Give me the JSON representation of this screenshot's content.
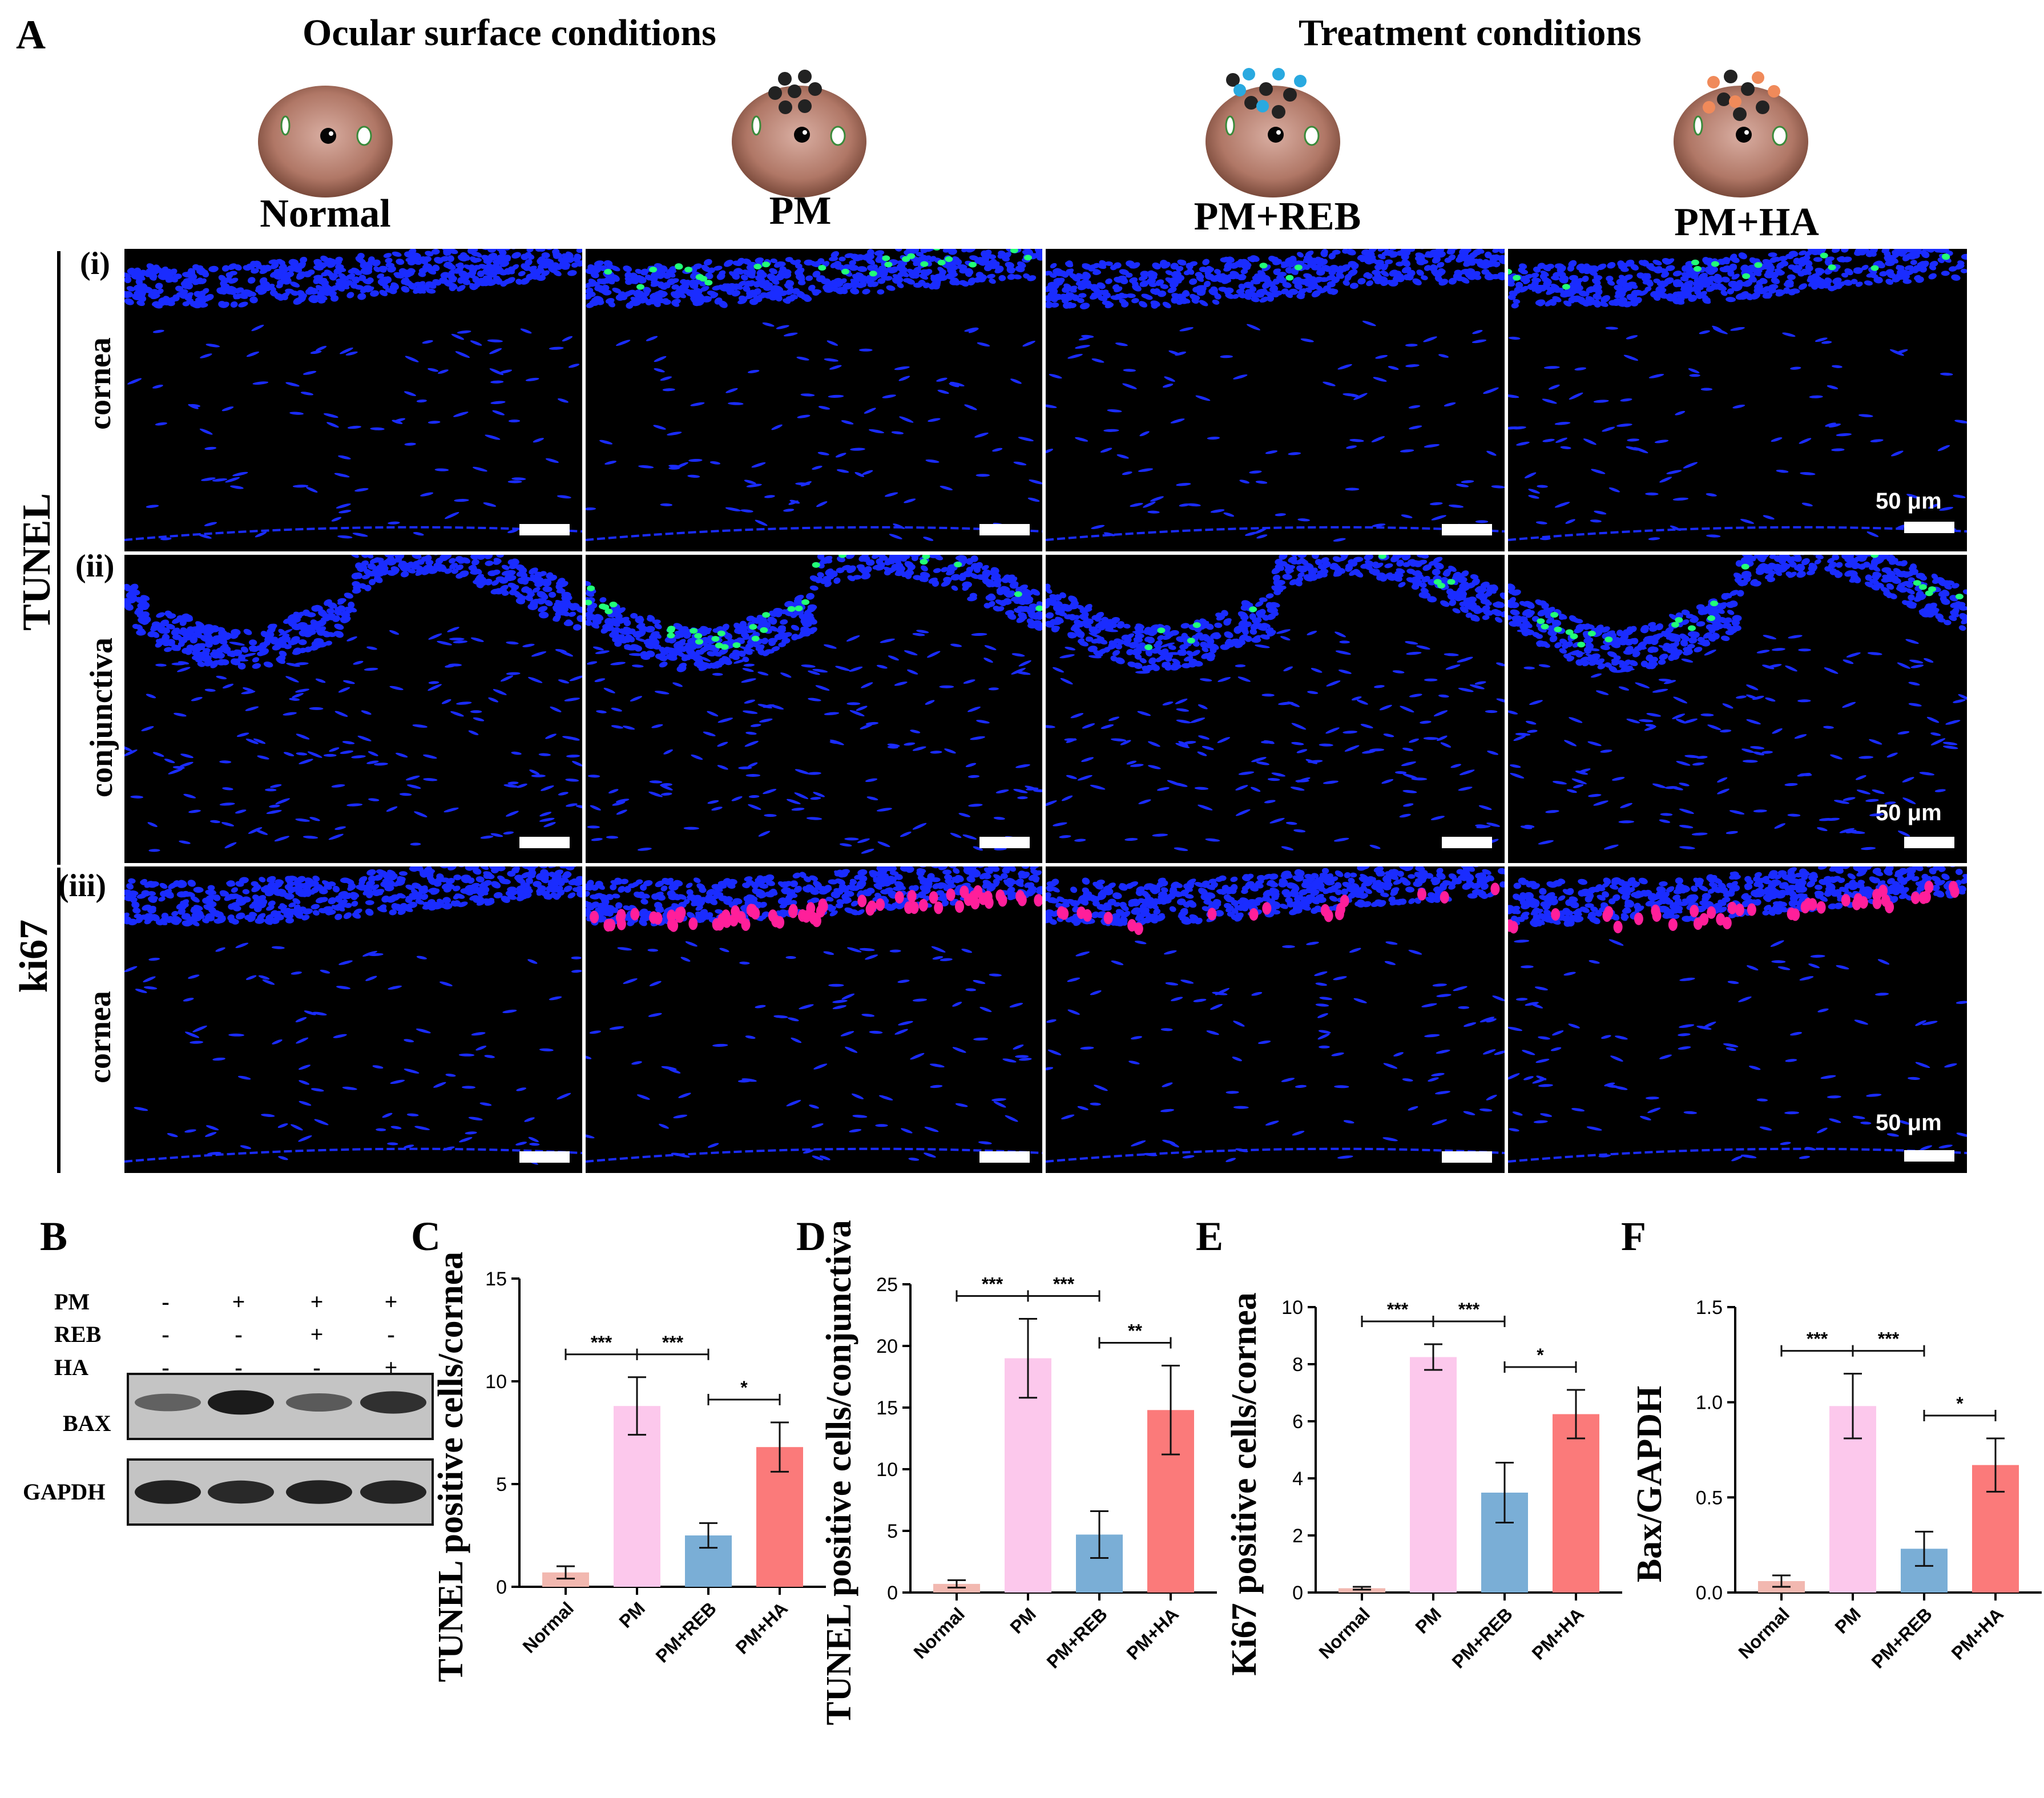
{
  "panel_letters": {
    "a": "A",
    "b": "B",
    "c": "C",
    "d": "D",
    "e": "E",
    "f": "F"
  },
  "headings": {
    "ocular": "Ocular surface conditions",
    "treatment": "Treatment conditions"
  },
  "conditions": [
    "Normal",
    "PM",
    "PM+REB",
    "PM+HA"
  ],
  "groups": {
    "tunel": "TUNEL",
    "ki67": "ki67"
  },
  "rows": [
    {
      "roman": "(i)",
      "tissue": "cornea",
      "stain": "tunel"
    },
    {
      "roman": "(ii)",
      "tissue": "conjunctiva",
      "stain": "tunel"
    },
    {
      "roman": "(iii)",
      "tissue": "cornea",
      "stain": "ki67"
    }
  ],
  "scale_bar_label": "50 μm",
  "colors": {
    "nuclei": "#1a2cff",
    "tunel": "#22ff77",
    "ki67": "#ff1f9a",
    "normal_bar": "#f2b8b0",
    "pm_bar": "#fcc8ec",
    "reb_bar": "#7aaed6",
    "ha_bar": "#fb7a7a"
  },
  "western_blot": {
    "treatments": [
      {
        "label": "PM",
        "signs": [
          "-",
          "+",
          "+",
          "+"
        ]
      },
      {
        "label": "REB",
        "signs": [
          "-",
          "-",
          "+",
          "-"
        ]
      },
      {
        "label": "HA",
        "signs": [
          "-",
          "-",
          "-",
          "+"
        ]
      }
    ],
    "bands": [
      {
        "label": "BAX",
        "intensities": [
          0.45,
          0.95,
          0.5,
          0.8
        ]
      },
      {
        "label": "GAPDH",
        "intensities": [
          0.9,
          0.85,
          0.9,
          0.88
        ]
      }
    ]
  },
  "chart_data": [
    {
      "type": "bar",
      "panel": "C",
      "categories": [
        "Normal",
        "PM",
        "PM+REB",
        "PM+HA"
      ],
      "values": [
        0.7,
        8.8,
        2.5,
        6.8
      ],
      "errors": [
        0.3,
        1.4,
        0.6,
        1.2
      ],
      "ylabel": "TUNEL positive cells/cornea",
      "xlabel": "",
      "ylim": [
        0,
        15
      ],
      "yticks": [
        0,
        5,
        10,
        15
      ],
      "significance": [
        {
          "from": 0,
          "to": 1,
          "label": "***"
        },
        {
          "from": 1,
          "to": 2,
          "label": "***"
        },
        {
          "from": 2,
          "to": 3,
          "label": "*"
        }
      ]
    },
    {
      "type": "bar",
      "panel": "D",
      "categories": [
        "Normal",
        "PM",
        "PM+REB",
        "PM+HA"
      ],
      "values": [
        0.7,
        19.0,
        4.7,
        14.8
      ],
      "errors": [
        0.3,
        3.2,
        1.9,
        3.6
      ],
      "ylabel": "TUNEL positive cells/conjunctiva",
      "xlabel": "",
      "ylim": [
        0,
        25
      ],
      "yticks": [
        0,
        5,
        10,
        15,
        20,
        25
      ],
      "significance": [
        {
          "from": 0,
          "to": 1,
          "label": "***"
        },
        {
          "from": 1,
          "to": 2,
          "label": "***"
        },
        {
          "from": 2,
          "to": 3,
          "label": "**"
        }
      ]
    },
    {
      "type": "bar",
      "panel": "E",
      "categories": [
        "Normal",
        "PM",
        "PM+REB",
        "PM+HA"
      ],
      "values": [
        0.15,
        8.25,
        3.5,
        6.25
      ],
      "errors": [
        0.05,
        0.45,
        1.05,
        0.85
      ],
      "ylabel": "Ki67 positive cells/cornea",
      "xlabel": "",
      "ylim": [
        0,
        10
      ],
      "yticks": [
        0,
        2,
        4,
        6,
        8,
        10
      ],
      "significance": [
        {
          "from": 0,
          "to": 1,
          "label": "***"
        },
        {
          "from": 1,
          "to": 2,
          "label": "***"
        },
        {
          "from": 2,
          "to": 3,
          "label": "*"
        }
      ]
    },
    {
      "type": "bar",
      "panel": "F",
      "categories": [
        "Normal",
        "PM",
        "PM+REB",
        "PM+HA"
      ],
      "values": [
        0.06,
        0.98,
        0.23,
        0.67
      ],
      "errors": [
        0.03,
        0.17,
        0.09,
        0.14
      ],
      "ylabel": "Bax/GAPDH",
      "xlabel": "",
      "ylim": [
        0,
        1.5
      ],
      "yticks": [
        "0.0",
        "0.5",
        "1.0",
        "1.5"
      ],
      "significance": [
        {
          "from": 0,
          "to": 1,
          "label": "***"
        },
        {
          "from": 1,
          "to": 2,
          "label": "***"
        },
        {
          "from": 2,
          "to": 3,
          "label": "*"
        }
      ]
    }
  ]
}
